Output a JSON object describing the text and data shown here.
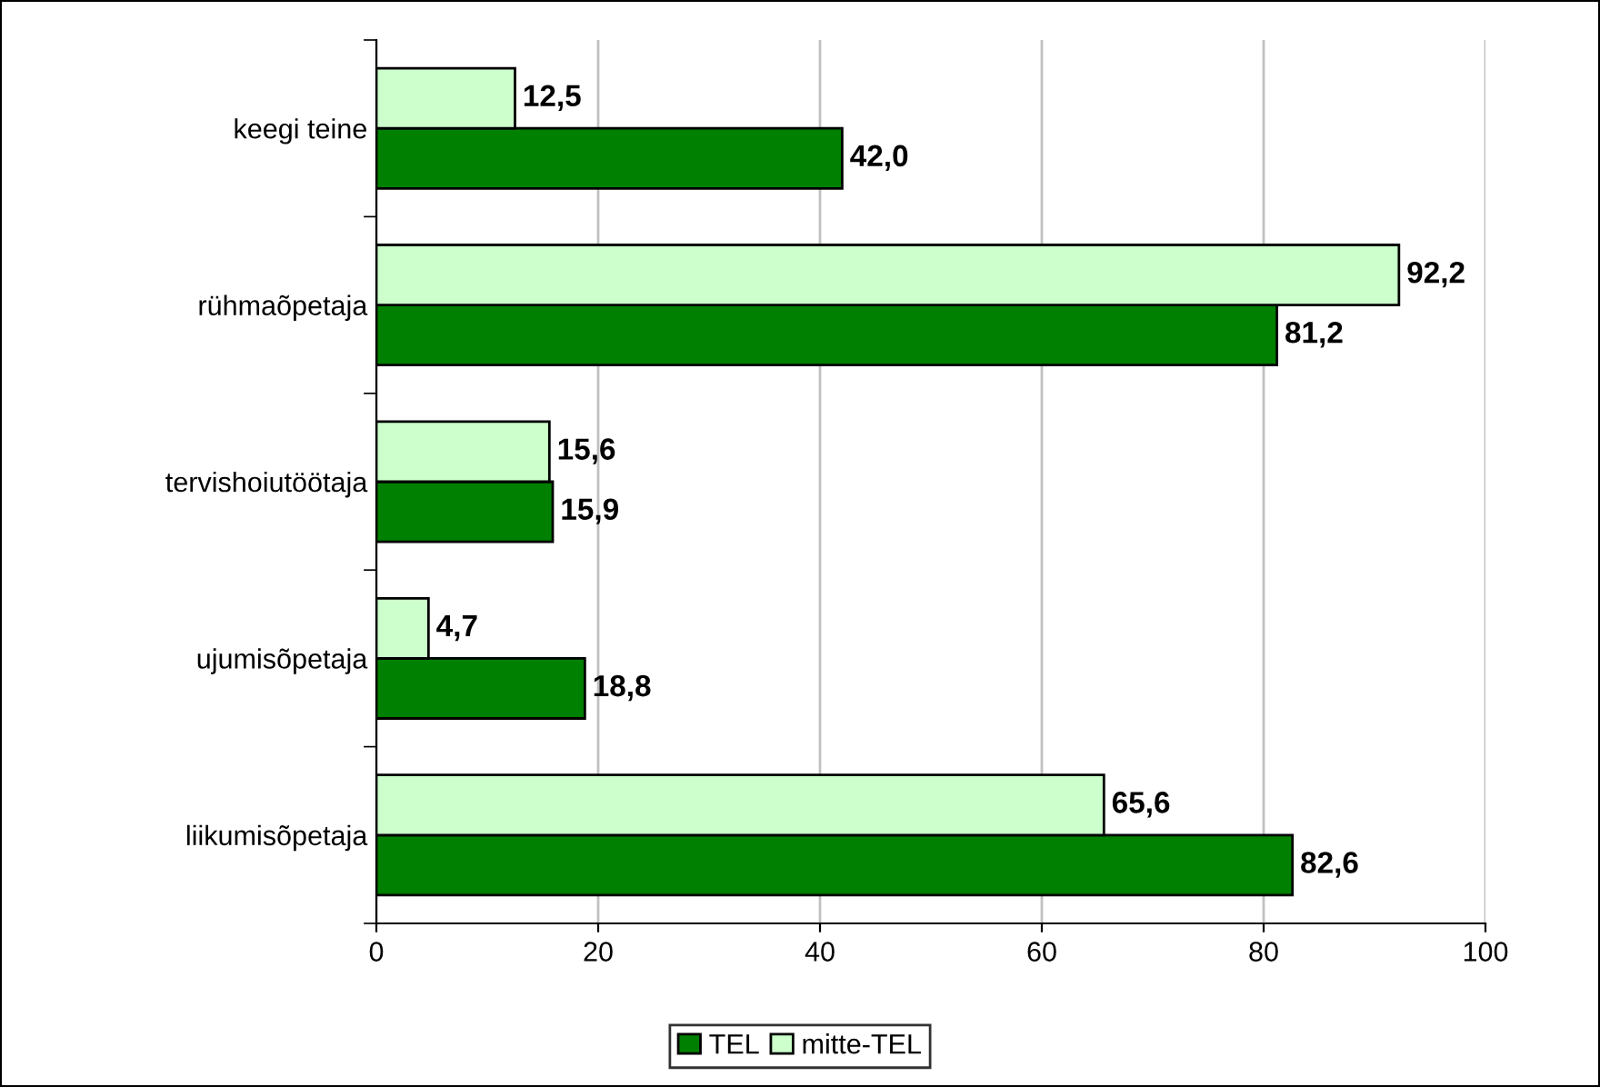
{
  "chart_data": {
    "type": "bar",
    "orientation": "horizontal",
    "categories": [
      "keegi teine",
      "rühmaõpetaja",
      "tervishoiutöötaja",
      "ujumisõpetaja",
      "liikumisõpetaja"
    ],
    "series": [
      {
        "name": "TEL",
        "color": "#008000",
        "values": [
          42.0,
          81.2,
          15.9,
          18.8,
          82.6
        ],
        "value_labels": [
          "42,0",
          "81,2",
          "15,9",
          "18,8",
          "82,6"
        ]
      },
      {
        "name": "mitte-TEL",
        "color": "#ccffcc",
        "values": [
          12.5,
          92.2,
          15.6,
          4.7,
          65.6
        ],
        "value_labels": [
          "12,5",
          "92,2",
          "15,6",
          "4,7",
          "65,6"
        ]
      }
    ],
    "xlim": [
      0,
      100
    ],
    "xticks": [
      0,
      20,
      40,
      60,
      80,
      100
    ],
    "grid": "x",
    "legend": "bottom"
  }
}
